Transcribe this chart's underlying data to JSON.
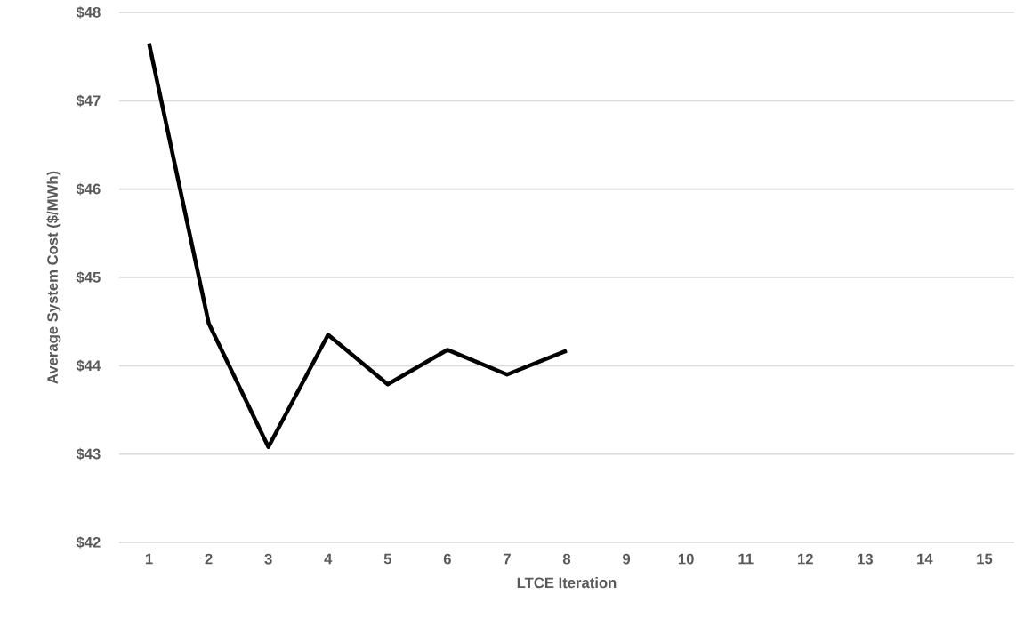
{
  "chart_data": {
    "type": "line",
    "xlabel": "LTCE Iteration",
    "ylabel": "Average System Cost ($/MWh)",
    "categories": [
      "1",
      "2",
      "3",
      "4",
      "5",
      "6",
      "7",
      "8",
      "9",
      "10",
      "11",
      "12",
      "13",
      "14",
      "15"
    ],
    "series": [
      {
        "color": "#000000",
        "values": [
          47.65,
          44.48,
          43.08,
          44.35,
          43.79,
          44.18,
          43.9,
          44.17,
          null,
          null,
          null,
          null,
          null,
          null,
          null
        ]
      }
    ],
    "ylim": [
      42,
      48
    ],
    "yticks": [
      {
        "value": 42,
        "label": "$42"
      },
      {
        "value": 43,
        "label": "$43"
      },
      {
        "value": 44,
        "label": "$44"
      },
      {
        "value": 45,
        "label": "$45"
      },
      {
        "value": 46,
        "label": "$46"
      },
      {
        "value": 47,
        "label": "$47"
      },
      {
        "value": 48,
        "label": "$48"
      }
    ],
    "grid": "y",
    "marker": "none",
    "line_style": "solid"
  }
}
